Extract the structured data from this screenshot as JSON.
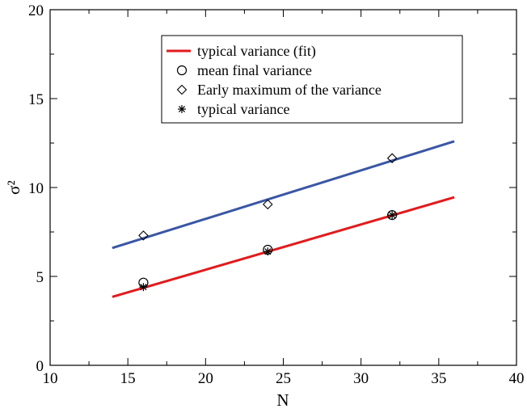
{
  "chart_data": {
    "type": "scatter",
    "title": "",
    "xlabel": "N",
    "ylabel": "σ²",
    "xlim": [
      10,
      40
    ],
    "ylim": [
      0,
      20
    ],
    "xticks": [
      "10",
      "15",
      "20",
      "25",
      "30",
      "35",
      "40"
    ],
    "yticks": [
      "0",
      "5",
      "10",
      "15",
      "20"
    ],
    "grid": false,
    "legend_position": "top-right",
    "series": [
      {
        "name": "typical variance (fit)",
        "kind": "line",
        "color": "#e31a1c",
        "x": [
          14,
          36
        ],
        "y": [
          3.85,
          9.45
        ]
      },
      {
        "name": "",
        "kind": "line",
        "color": "#3a56a5",
        "x": [
          14,
          36
        ],
        "y": [
          6.6,
          12.6
        ]
      },
      {
        "name": "mean final variance",
        "kind": "marker",
        "marker": "circle",
        "x": [
          16,
          24,
          32
        ],
        "y": [
          4.65,
          6.5,
          8.45
        ]
      },
      {
        "name": "Early maximum of the variance",
        "kind": "marker",
        "marker": "diamond",
        "x": [
          16,
          24,
          32
        ],
        "y": [
          7.3,
          9.05,
          11.65
        ]
      },
      {
        "name": "typical variance",
        "kind": "marker",
        "marker": "star",
        "x": [
          16,
          24,
          32
        ],
        "y": [
          4.4,
          6.4,
          8.45
        ]
      }
    ]
  }
}
